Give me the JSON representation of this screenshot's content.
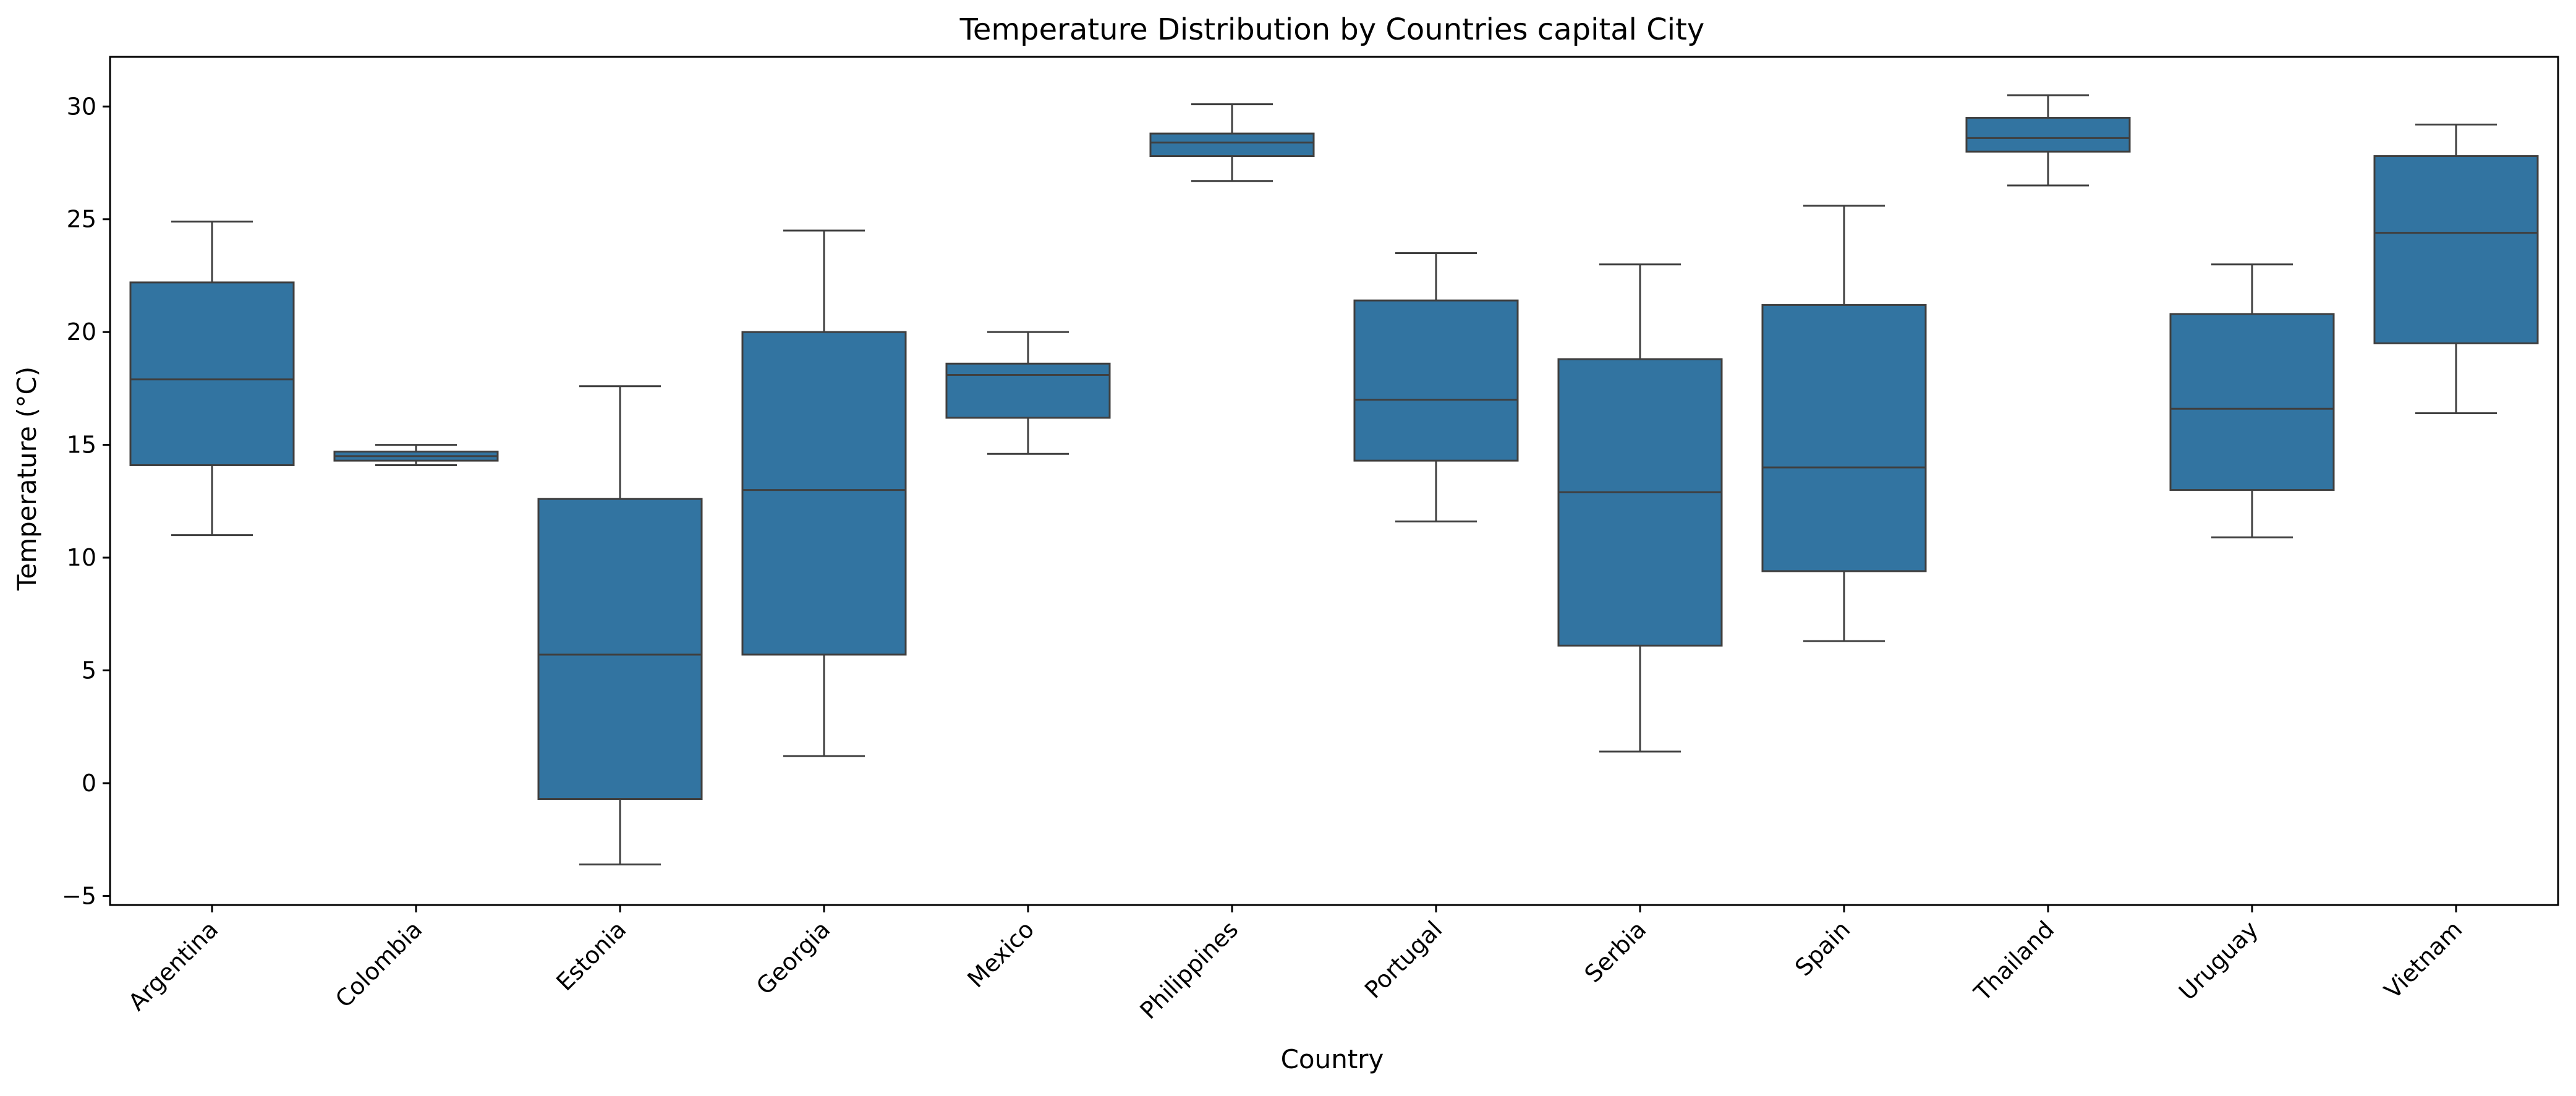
{
  "chart_data": {
    "type": "box",
    "title": "Temperature Distribution by Countries capital City",
    "xlabel": "Country",
    "ylabel": "Temperature (°C)",
    "ylim": [
      -5.4,
      32.2
    ],
    "yticks": [
      -5,
      0,
      5,
      10,
      15,
      20,
      25,
      30
    ],
    "ytick_labels": [
      "−5",
      "0",
      "5",
      "10",
      "15",
      "20",
      "25",
      "30"
    ],
    "grid": false,
    "legend": "none",
    "box_color": "#3274a1",
    "line_color": "#3f3f3f",
    "categories": [
      "Argentina",
      "Colombia",
      "Estonia",
      "Georgia",
      "Mexico",
      "Philippines",
      "Portugal",
      "Serbia",
      "Spain",
      "Thailand",
      "Uruguay",
      "Vietnam"
    ],
    "boxes": [
      {
        "whisker_low": 11.0,
        "q1": 14.1,
        "median": 17.9,
        "q3": 22.2,
        "whisker_high": 24.9
      },
      {
        "whisker_low": 14.1,
        "q1": 14.3,
        "median": 14.5,
        "q3": 14.7,
        "whisker_high": 15.0
      },
      {
        "whisker_low": -3.6,
        "q1": -0.7,
        "median": 5.7,
        "q3": 12.6,
        "whisker_high": 17.6
      },
      {
        "whisker_low": 1.2,
        "q1": 5.7,
        "median": 13.0,
        "q3": 20.0,
        "whisker_high": 24.5
      },
      {
        "whisker_low": 14.6,
        "q1": 16.2,
        "median": 18.1,
        "q3": 18.6,
        "whisker_high": 20.0
      },
      {
        "whisker_low": 26.7,
        "q1": 27.8,
        "median": 28.4,
        "q3": 28.8,
        "whisker_high": 30.1
      },
      {
        "whisker_low": 11.6,
        "q1": 14.3,
        "median": 17.0,
        "q3": 21.4,
        "whisker_high": 23.5
      },
      {
        "whisker_low": 1.4,
        "q1": 6.1,
        "median": 12.9,
        "q3": 18.8,
        "whisker_high": 23.0
      },
      {
        "whisker_low": 6.3,
        "q1": 9.4,
        "median": 14.0,
        "q3": 21.2,
        "whisker_high": 25.6
      },
      {
        "whisker_low": 26.5,
        "q1": 28.0,
        "median": 28.6,
        "q3": 29.5,
        "whisker_high": 30.5
      },
      {
        "whisker_low": 10.9,
        "q1": 13.0,
        "median": 16.6,
        "q3": 20.8,
        "whisker_high": 23.0
      },
      {
        "whisker_low": 16.4,
        "q1": 19.5,
        "median": 24.4,
        "q3": 27.8,
        "whisker_high": 29.2
      }
    ]
  }
}
